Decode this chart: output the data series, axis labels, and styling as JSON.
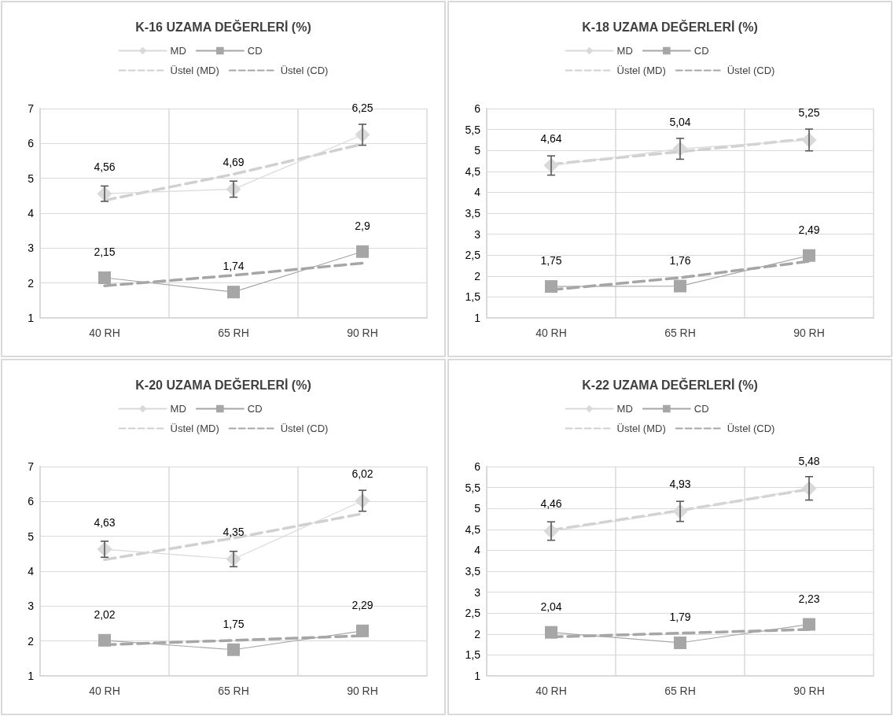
{
  "chart_data": [
    {
      "type": "line",
      "title": "K-16 UZAMA DEĞERLERİ (%)",
      "categories": [
        "40 RH",
        "65 RH",
        "90 RH"
      ],
      "ylim": [
        1,
        7
      ],
      "yticks": [
        1,
        2,
        3,
        4,
        5,
        6,
        7
      ],
      "grid": true,
      "legend": "top",
      "marker": "none",
      "series": [
        {
          "name": "MD",
          "color": "#d9d9d9",
          "marker": "diamond",
          "line_style": "solid",
          "values": [
            4.56,
            4.69,
            6.25
          ],
          "value_labels": [
            "4,56",
            "4,69",
            "6,25"
          ],
          "errors": [
            0.22,
            0.23,
            0.3
          ]
        },
        {
          "name": "CD",
          "color": "#a6a6a6",
          "marker": "square",
          "line_style": "solid",
          "values": [
            2.15,
            1.74,
            2.9
          ],
          "value_labels": [
            "2,15",
            "1,74",
            "2,9"
          ]
        },
        {
          "name": "Üstel (MD)",
          "color": "#d0d0d0",
          "line_style": "dashed",
          "values": [
            4.37,
            5.12,
            5.98
          ]
        },
        {
          "name": "Üstel (CD)",
          "color": "#a6a6a6",
          "line_style": "dashed",
          "values": [
            1.92,
            2.22,
            2.57
          ]
        }
      ]
    },
    {
      "type": "line",
      "title": "K-18 UZAMA DEĞERLERİ (%)",
      "categories": [
        "40 RH",
        "65 RH",
        "90 RH"
      ],
      "ylim": [
        1,
        6
      ],
      "yticks": [
        1,
        {
          "value": 1.5,
          "label": "1,5"
        },
        2,
        {
          "value": 2.5,
          "label": "2,5"
        },
        3,
        {
          "value": 3.5,
          "label": "3,5"
        },
        4,
        {
          "value": 4.5,
          "label": "4,5"
        },
        5,
        {
          "value": 5.5,
          "label": "5,5"
        },
        6
      ],
      "grid": true,
      "legend": "top",
      "marker": "none",
      "series": [
        {
          "name": "MD",
          "color": "#d9d9d9",
          "marker": "diamond",
          "line_style": "solid",
          "values": [
            4.64,
            5.04,
            5.25
          ],
          "value_labels": [
            "4,64",
            "5,04",
            "5,25"
          ],
          "errors": [
            0.23,
            0.25,
            0.26
          ]
        },
        {
          "name": "CD",
          "color": "#a6a6a6",
          "marker": "square",
          "line_style": "solid",
          "values": [
            1.75,
            1.76,
            2.49
          ],
          "value_labels": [
            "1,75",
            "1,76",
            "2,49"
          ]
        },
        {
          "name": "Üstel (MD)",
          "color": "#d0d0d0",
          "line_style": "dashed",
          "values": [
            4.67,
            4.97,
            5.28
          ]
        },
        {
          "name": "Üstel (CD)",
          "color": "#a6a6a6",
          "line_style": "dashed",
          "values": [
            1.67,
            1.96,
            2.35
          ]
        }
      ]
    },
    {
      "type": "line",
      "title": "K-20 UZAMA DEĞERLERİ (%)",
      "categories": [
        "40 RH",
        "65 RH",
        "90 RH"
      ],
      "ylim": [
        1,
        7
      ],
      "yticks": [
        1,
        2,
        3,
        4,
        5,
        6,
        7
      ],
      "grid": true,
      "legend": "top",
      "marker": "none",
      "series": [
        {
          "name": "MD",
          "color": "#d9d9d9",
          "marker": "diamond",
          "line_style": "solid",
          "values": [
            4.63,
            4.35,
            6.02
          ],
          "value_labels": [
            "4,63",
            "4,35",
            "6,02"
          ],
          "errors": [
            0.23,
            0.22,
            0.3
          ]
        },
        {
          "name": "CD",
          "color": "#a6a6a6",
          "marker": "square",
          "line_style": "solid",
          "values": [
            2.02,
            1.75,
            2.29
          ],
          "value_labels": [
            "2,02",
            "1,75",
            "2,29"
          ]
        },
        {
          "name": "Üstel (MD)",
          "color": "#d0d0d0",
          "line_style": "dashed",
          "values": [
            4.33,
            4.95,
            5.65
          ]
        },
        {
          "name": "Üstel (CD)",
          "color": "#a6a6a6",
          "line_style": "dashed",
          "values": [
            1.89,
            2.02,
            2.15
          ]
        }
      ]
    },
    {
      "type": "line",
      "title": "K-22 UZAMA DEĞERLERİ (%)",
      "categories": [
        "40 RH",
        "65 RH",
        "90 RH"
      ],
      "ylim": [
        1,
        6
      ],
      "yticks": [
        1,
        {
          "value": 1.5,
          "label": "1,5"
        },
        2,
        {
          "value": 2.5,
          "label": "2,5"
        },
        3,
        {
          "value": 3.5,
          "label": "3,5"
        },
        4,
        {
          "value": 4.5,
          "label": "4,5"
        },
        5,
        {
          "value": 5.5,
          "label": "5,5"
        },
        6
      ],
      "grid": true,
      "legend": "top",
      "marker": "none",
      "series": [
        {
          "name": "MD",
          "color": "#d9d9d9",
          "marker": "diamond",
          "line_style": "solid",
          "values": [
            4.46,
            4.93,
            5.48
          ],
          "value_labels": [
            "4,46",
            "4,93",
            "5,48"
          ],
          "errors": [
            0.22,
            0.24,
            0.28
          ]
        },
        {
          "name": "CD",
          "color": "#a6a6a6",
          "marker": "square",
          "line_style": "solid",
          "values": [
            2.04,
            1.79,
            2.23
          ],
          "value_labels": [
            "2,04",
            "1,79",
            "2,23"
          ]
        },
        {
          "name": "Üstel (MD)",
          "color": "#d0d0d0",
          "line_style": "dashed",
          "values": [
            4.48,
            4.95,
            5.46
          ]
        },
        {
          "name": "Üstel (CD)",
          "color": "#a6a6a6",
          "line_style": "dashed",
          "values": [
            1.93,
            2.02,
            2.11
          ]
        }
      ]
    }
  ]
}
